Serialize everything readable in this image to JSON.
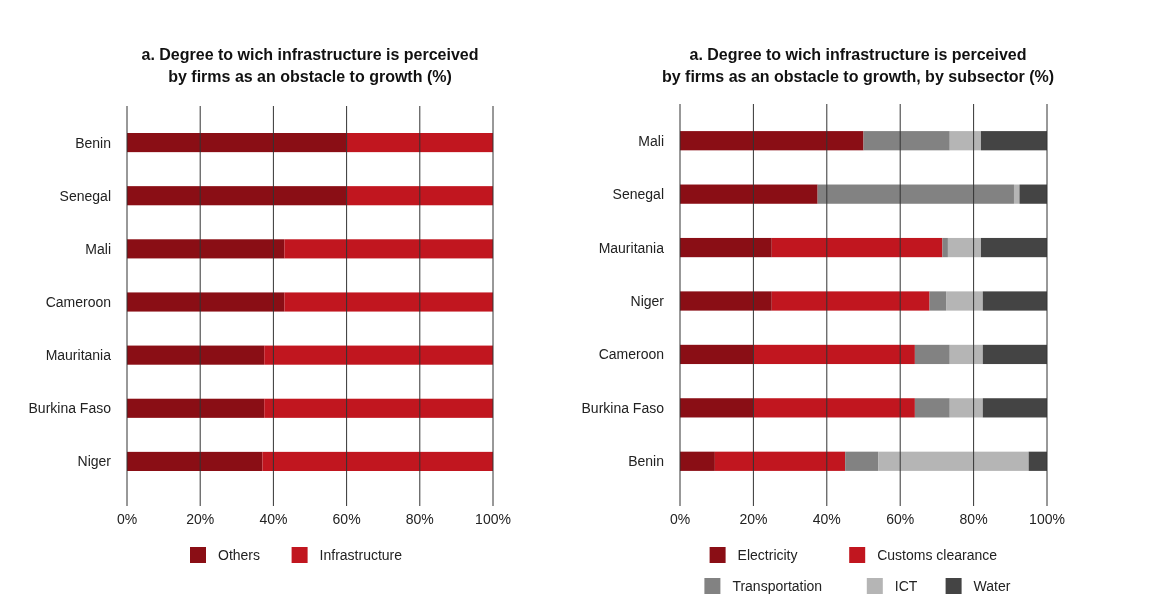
{
  "chart_data": [
    {
      "type": "bar",
      "orientation": "horizontal",
      "stacked": true,
      "title": "a. Degree to wich infrastructure is perceived\nby firms as an obstacle to growth (%)",
      "categories": [
        "Benin",
        "Senegal",
        "Mali",
        "Cameroon",
        "Mauritania",
        "Burkina Faso",
        "Niger"
      ],
      "series": [
        {
          "name": "Others",
          "color": "#8a0e15",
          "values": [
            60,
            60,
            43,
            43,
            37.5,
            37.5,
            37
          ]
        },
        {
          "name": "Infrastructure",
          "color": "#c1161f",
          "values": [
            40,
            40,
            57,
            57,
            62.5,
            62.5,
            63
          ]
        }
      ],
      "xlim": [
        0,
        100
      ],
      "xticks": [
        {
          "value": 0,
          "label": "0%"
        },
        {
          "value": 20,
          "label": "20%"
        },
        {
          "value": 40,
          "label": "40%"
        },
        {
          "value": 60,
          "label": "60%"
        },
        {
          "value": 80,
          "label": "80%"
        },
        {
          "value": 100,
          "label": "100%"
        }
      ],
      "grid": "x",
      "legend": "bottom"
    },
    {
      "type": "bar",
      "orientation": "horizontal",
      "stacked": true,
      "title": "a. Degree to wich infrastructure is perceived\nby firms as an obstacle to growth, by subsector (%)",
      "categories": [
        "Mali",
        "Senegal",
        "Mauritania",
        "Niger",
        "Cameroon",
        "Burkina Faso",
        "Benin"
      ],
      "series": [
        {
          "name": "Electricity",
          "color": "#8a0e15",
          "values": [
            50,
            37.5,
            25,
            25,
            20,
            20,
            9.5
          ]
        },
        {
          "name": "Customs clearance",
          "color": "#c1161f",
          "values": [
            0,
            0,
            46.5,
            43,
            44,
            44,
            35.5
          ]
        },
        {
          "name": "Transportation",
          "color": "#828282",
          "values": [
            23.5,
            53.5,
            1.5,
            4.5,
            9.5,
            9.5,
            9
          ]
        },
        {
          "name": "ICT",
          "color": "#b5b5b5",
          "values": [
            8.5,
            1.5,
            9,
            10,
            9,
            9,
            41
          ]
        },
        {
          "name": "Water",
          "color": "#444444",
          "values": [
            18,
            7.5,
            18,
            17.5,
            17.5,
            17.5,
            5
          ]
        }
      ],
      "xlim": [
        0,
        100
      ],
      "xticks": [
        {
          "value": 0,
          "label": "0%"
        },
        {
          "value": 20,
          "label": "20%"
        },
        {
          "value": 40,
          "label": "40%"
        },
        {
          "value": 60,
          "label": "60%"
        },
        {
          "value": 80,
          "label": "80%"
        },
        {
          "value": 100,
          "label": "100%"
        }
      ],
      "grid": "x",
      "legend": "bottom"
    }
  ]
}
